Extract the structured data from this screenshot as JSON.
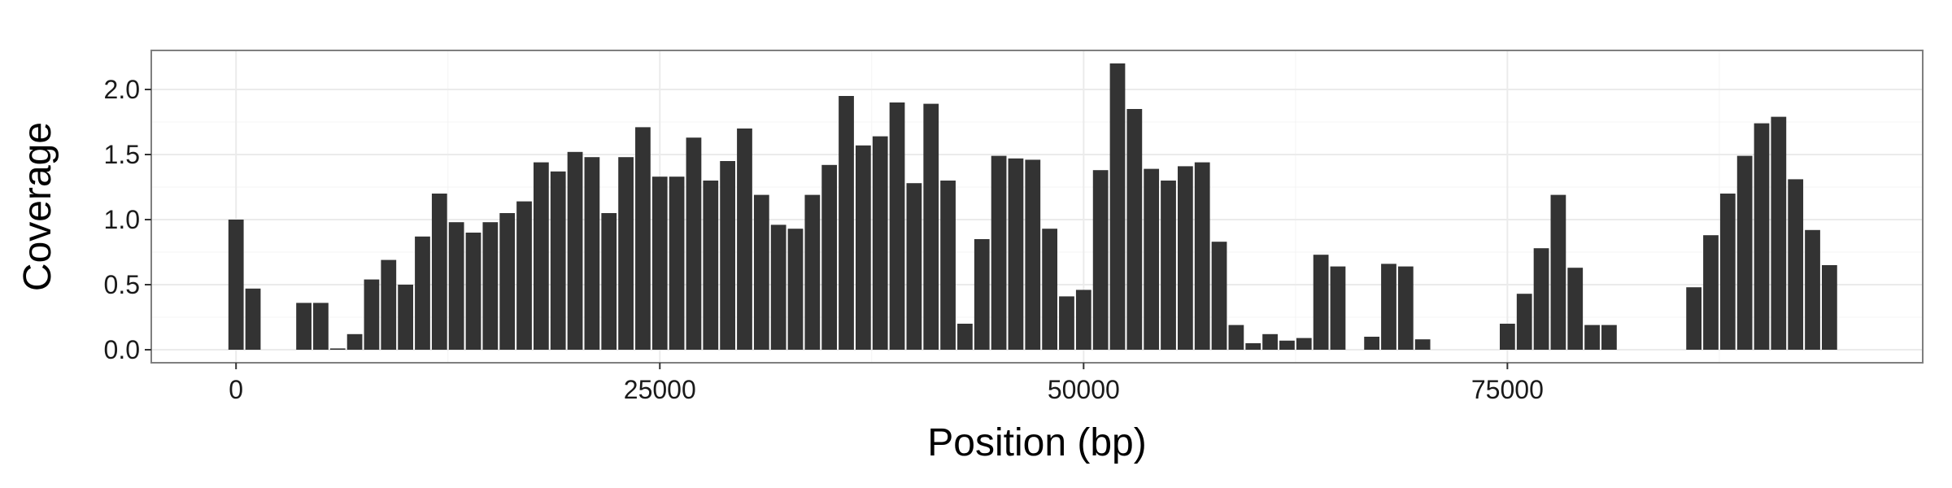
{
  "chart_data": {
    "type": "bar",
    "title": "",
    "xlabel": "Position (bp)",
    "ylabel": "Coverage",
    "xlim": [
      -5000,
      99500
    ],
    "ylim": [
      -0.1,
      2.3
    ],
    "bin_width": 1000,
    "xticks": [
      0,
      25000,
      50000,
      75000
    ],
    "xtick_labels": [
      "0",
      "25000",
      "50000",
      "75000"
    ],
    "yticks": [
      0.0,
      0.5,
      1.0,
      1.5,
      2.0
    ],
    "ytick_labels": [
      "0.0",
      "0.5",
      "1.0",
      "1.5",
      "2.0"
    ],
    "grid": true,
    "colors": {
      "bar": "#333333",
      "panel_border": "#7f7f7f",
      "grid": "#ebebeb"
    },
    "x": [
      0,
      1000,
      2000,
      3000,
      4000,
      5000,
      6000,
      7000,
      8000,
      9000,
      10000,
      11000,
      12000,
      13000,
      14000,
      15000,
      16000,
      17000,
      18000,
      19000,
      20000,
      21000,
      22000,
      23000,
      24000,
      25000,
      26000,
      27000,
      28000,
      29000,
      30000,
      31000,
      32000,
      33000,
      34000,
      35000,
      36000,
      37000,
      38000,
      39000,
      40000,
      41000,
      42000,
      43000,
      44000,
      45000,
      46000,
      47000,
      48000,
      49000,
      50000,
      51000,
      52000,
      53000,
      54000,
      55000,
      56000,
      57000,
      58000,
      59000,
      60000,
      61000,
      62000,
      63000,
      64000,
      65000,
      66000,
      67000,
      68000,
      69000,
      70000,
      71000,
      72000,
      73000,
      74000,
      75000,
      76000,
      77000,
      78000,
      79000,
      80000,
      81000,
      82000,
      83000,
      84000,
      85000,
      86000,
      87000,
      88000,
      89000,
      90000,
      91000,
      92000,
      93000,
      94000
    ],
    "values": [
      1.0,
      0.47,
      0,
      0,
      0.36,
      0.36,
      0.01,
      0.12,
      0.54,
      0.69,
      0.5,
      0.87,
      1.2,
      0.98,
      0.9,
      0.98,
      1.05,
      1.14,
      1.44,
      1.37,
      1.52,
      1.48,
      1.05,
      1.48,
      1.71,
      1.33,
      1.33,
      1.63,
      1.3,
      1.45,
      1.7,
      1.19,
      0.96,
      0.93,
      1.19,
      1.42,
      1.95,
      1.57,
      1.64,
      1.9,
      1.28,
      1.89,
      1.3,
      0.2,
      0.85,
      1.49,
      1.47,
      1.46,
      0.93,
      0.41,
      0.46,
      1.38,
      2.2,
      1.85,
      1.39,
      1.3,
      1.41,
      1.44,
      0.83,
      0.19,
      0.05,
      0.12,
      0.07,
      0.09,
      0.73,
      0.64,
      0,
      0.1,
      0.66,
      0.64,
      0.08,
      0,
      0,
      0,
      0,
      0.2,
      0.43,
      0.78,
      1.19,
      0.63,
      0.19,
      0.19,
      0,
      0,
      0,
      0,
      0.48,
      0.88,
      1.2,
      1.49,
      1.74,
      1.79,
      1.31,
      0.92,
      0.65
    ]
  }
}
